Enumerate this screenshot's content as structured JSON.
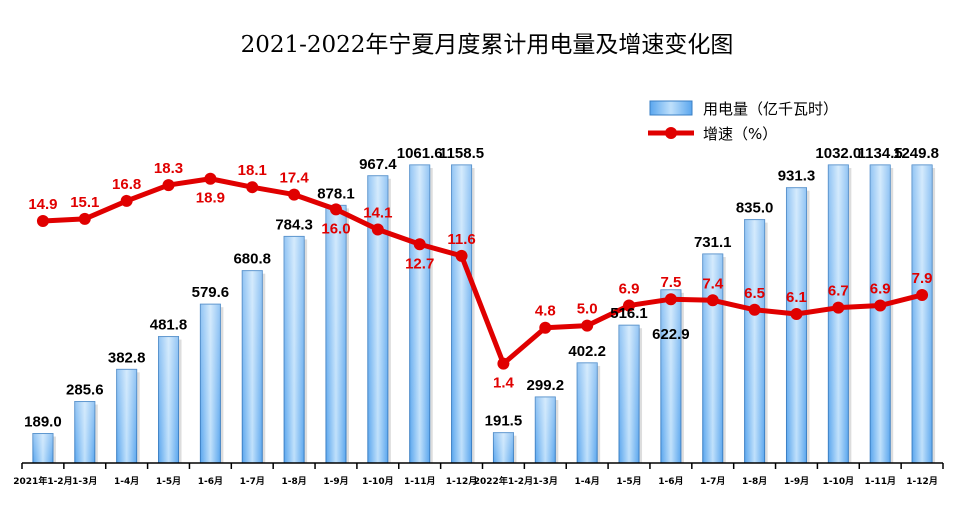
{
  "chart_data": {
    "type": "bar+line",
    "title": "2021-2022年宁夏月度累计用电量及增速变化图",
    "categories": [
      "2021年1-2月",
      "1-3月",
      "1-4月",
      "1-5月",
      "1-6月",
      "1-7月",
      "1-8月",
      "1-9月",
      "1-10月",
      "1-11月",
      "1-12月",
      "2022年1-2月",
      "1-3月",
      "1-4月",
      "1-5月",
      "1-6月",
      "1-7月",
      "1-8月",
      "1-9月",
      "1-10月",
      "1-11月",
      "1-12月"
    ],
    "series": [
      {
        "name": "用电量（亿千瓦时）",
        "type": "bar",
        "axis": "left",
        "color": "#6fb4f0",
        "values": [
          189.0,
          285.6,
          382.8,
          481.8,
          579.6,
          680.8,
          784.3,
          878.1,
          967.4,
          1061.6,
          1158.5,
          191.5,
          299.2,
          402.2,
          516.1,
          622.9,
          731.1,
          835.0,
          931.3,
          1032.0,
          1134.5,
          1249.8
        ],
        "labels": [
          "189.0",
          "285.6",
          "382.8",
          "481.8",
          "579.6",
          "680.8",
          "784.3",
          "878.1",
          "967.4",
          "1061.6",
          "1158.5",
          "191.5",
          "299.2",
          "402.2",
          "516.1",
          "622.9",
          "731.1",
          "835.0",
          "931.3",
          "1032.0",
          "1134.5",
          "1249.8"
        ]
      },
      {
        "name": "增速（%）",
        "type": "line",
        "axis": "right",
        "color": "#e00000",
        "values": [
          14.9,
          15.1,
          16.8,
          18.3,
          18.9,
          18.1,
          17.4,
          16.0,
          14.1,
          12.7,
          11.6,
          1.4,
          4.8,
          5.0,
          6.9,
          7.5,
          7.4,
          6.5,
          6.1,
          6.7,
          6.9,
          7.9
        ],
        "labels": [
          "14.9",
          "15.1",
          "16.8",
          "18.3",
          "18.9",
          "18.1",
          "17.4",
          "16.0",
          "14.1",
          "12.7",
          "11.6",
          "1.4",
          "4.8",
          "5.0",
          "6.9",
          "7.5",
          "7.4",
          "6.5",
          "6.1",
          "6.7",
          "6.9",
          "7.9"
        ],
        "label_side": [
          "above",
          "above",
          "above",
          "above",
          "below",
          "above",
          "above",
          "below",
          "above",
          "below",
          "above",
          "below",
          "above",
          "above",
          "above",
          "above",
          "above",
          "above",
          "above",
          "above",
          "above",
          "above"
        ]
      }
    ],
    "bar_ylim": [
      100,
      1000
    ],
    "line_ylim": [
      -8,
      20.2
    ],
    "grid": false,
    "legend_position": "top-right"
  }
}
